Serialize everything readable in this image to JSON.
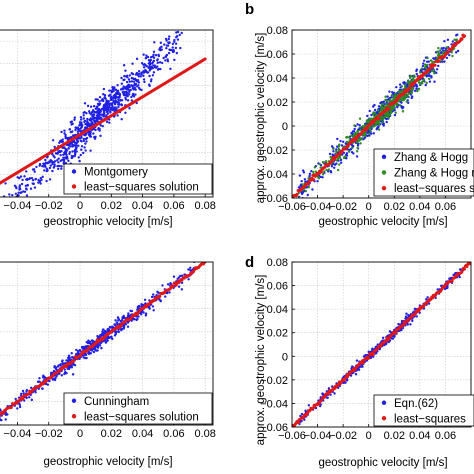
{
  "colors": {
    "blue": "#1f1fe6",
    "red": "#e01818",
    "green": "#2e8b1f",
    "grid": "#c8c8c8",
    "axis": "#000000"
  },
  "chart_data": [
    {
      "id": "a",
      "type": "scatter",
      "panel_label": "",
      "xlabel": "geostrophic velocity [m/s]",
      "ylabel": "",
      "xlim": [
        -0.055,
        0.085
      ],
      "ylim": [
        -0.06,
        0.09
      ],
      "x_ticks": [
        "−0.04",
        "−0.02",
        "0",
        "0.02",
        "0.04",
        "0.06",
        "0.08"
      ],
      "x_tick_values": [
        -0.04,
        -0.02,
        0,
        0.02,
        0.04,
        0.06,
        0.08
      ],
      "grid": true,
      "legend_position": "bottom-right",
      "series": [
        {
          "name": "Montgomery",
          "color_key": "blue",
          "slope": 1.35,
          "spread": 0.008,
          "n": 900,
          "x_range": [
            -0.055,
            0.065
          ]
        },
        {
          "name": "least−squares solution",
          "color_key": "red",
          "slope": 0.85,
          "spread": 0.0008,
          "n": 220,
          "x_range": [
            -0.055,
            0.08
          ]
        }
      ]
    },
    {
      "id": "b",
      "type": "scatter",
      "panel_label": "b",
      "xlabel": "geostrophic velocity [m/s]",
      "ylabel": "approx. geostrophic velocity [m/s]",
      "xlim": [
        -0.06,
        0.08
      ],
      "ylim": [
        -0.06,
        0.08
      ],
      "x_ticks": [
        "−0.06",
        "−0.04",
        "−0.02",
        "0",
        "0.02",
        "0.04",
        "0.06"
      ],
      "x_tick_values": [
        -0.06,
        -0.04,
        -0.02,
        0,
        0.02,
        0.04,
        0.06
      ],
      "y_ticks": [
        "−0.06",
        "−0.04",
        "−0.02",
        "0",
        "0.02",
        "0.04",
        "0.06",
        "0.08"
      ],
      "y_tick_values": [
        -0.06,
        -0.04,
        -0.02,
        0,
        0.02,
        0.04,
        0.06,
        0.08
      ],
      "grid": true,
      "legend_position": "bottom-right",
      "series": [
        {
          "name": "Zhang & Hogg",
          "color_key": "blue",
          "slope": 1.0,
          "spread": 0.005,
          "n": 700,
          "x_range": [
            -0.055,
            0.07
          ]
        },
        {
          "name": "Zhang & Hogg n",
          "color_key": "green",
          "slope": 1.0,
          "spread": 0.004,
          "n": 500,
          "x_range": [
            -0.055,
            0.07
          ]
        },
        {
          "name": "least−squares sa",
          "color_key": "red",
          "slope": 1.0,
          "spread": 0.0008,
          "n": 200,
          "x_range": [
            -0.06,
            0.075
          ]
        }
      ]
    },
    {
      "id": "c",
      "type": "scatter",
      "panel_label": "",
      "xlabel": "geostrophic velocity [m/s]",
      "ylabel": "",
      "xlim": [
        -0.055,
        0.085
      ],
      "ylim": [
        -0.06,
        0.08
      ],
      "x_ticks": [
        "−0.04",
        "−0.02",
        "0",
        "0.02",
        "0.04",
        "0.06",
        "0.08"
      ],
      "x_tick_values": [
        -0.04,
        -0.02,
        0,
        0.02,
        0.04,
        0.06,
        0.08
      ],
      "grid": true,
      "legend_position": "bottom-right",
      "series": [
        {
          "name": "Cunningham",
          "color_key": "blue",
          "slope": 1.0,
          "spread": 0.003,
          "n": 700,
          "x_range": [
            -0.055,
            0.075
          ]
        },
        {
          "name": "least−squares solution",
          "color_key": "red",
          "slope": 1.0,
          "spread": 0.0007,
          "n": 220,
          "x_range": [
            -0.055,
            0.08
          ]
        }
      ]
    },
    {
      "id": "d",
      "type": "scatter",
      "panel_label": "d",
      "xlabel": "geostrophic velocity [m/s]",
      "ylabel": "approx. geostrophic velocity [m/s]",
      "xlim": [
        -0.06,
        0.08
      ],
      "ylim": [
        -0.06,
        0.08
      ],
      "x_ticks": [
        "−0.06",
        "−0.04",
        "−0.02",
        "0",
        "0.02",
        "0.04",
        "0.06"
      ],
      "x_tick_values": [
        -0.06,
        -0.04,
        -0.02,
        0,
        0.02,
        0.04,
        0.06
      ],
      "y_ticks": [
        "−0.06",
        "−0.04",
        "−0.02",
        "0",
        "0.02",
        "0.04",
        "0.06",
        "0.08"
      ],
      "y_tick_values": [
        -0.06,
        -0.04,
        -0.02,
        0,
        0.02,
        0.04,
        0.06,
        0.08
      ],
      "grid": true,
      "legend_position": "bottom-right",
      "series": [
        {
          "name": "Eqn.(62)",
          "color_key": "blue",
          "slope": 1.0,
          "spread": 0.002,
          "n": 500,
          "x_range": [
            -0.055,
            0.075
          ]
        },
        {
          "name": "least−squares",
          "color_key": "red",
          "slope": 1.0,
          "spread": 0.0007,
          "n": 220,
          "x_range": [
            -0.06,
            0.08
          ]
        }
      ]
    }
  ]
}
